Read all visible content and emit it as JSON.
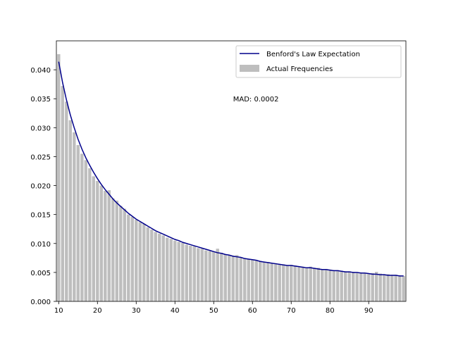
{
  "chart_data": {
    "type": "bar",
    "title": "",
    "xlabel": "",
    "ylabel": "",
    "xlim": [
      9.4,
      99.6
    ],
    "ylim": [
      0,
      0.045
    ],
    "xticks": [
      10,
      20,
      30,
      40,
      50,
      60,
      70,
      80,
      90
    ],
    "xtick_labels": [
      "10",
      "20",
      "30",
      "40",
      "50",
      "60",
      "70",
      "80",
      "90"
    ],
    "yticks": [
      0.0,
      0.005,
      0.01,
      0.015,
      0.02,
      0.025,
      0.03,
      0.035,
      0.04
    ],
    "ytick_labels": [
      "0.000",
      "0.005",
      "0.010",
      "0.015",
      "0.020",
      "0.025",
      "0.030",
      "0.035",
      "0.040"
    ],
    "grid": false,
    "legend_position": "top-right",
    "legend": {
      "line_label": "Benford's Law Expectation",
      "bar_label": "Actual Frequencies"
    },
    "annotation": {
      "text": "MAD: 0.0002",
      "x": 55,
      "y": 0.035
    },
    "colors": {
      "bar": "#bebebe",
      "line": "#00008b"
    },
    "x": [
      10,
      11,
      12,
      13,
      14,
      15,
      16,
      17,
      18,
      19,
      20,
      21,
      22,
      23,
      24,
      25,
      26,
      27,
      28,
      29,
      30,
      31,
      32,
      33,
      34,
      35,
      36,
      37,
      38,
      39,
      40,
      41,
      42,
      43,
      44,
      45,
      46,
      47,
      48,
      49,
      50,
      51,
      52,
      53,
      54,
      55,
      56,
      57,
      58,
      59,
      60,
      61,
      62,
      63,
      64,
      65,
      66,
      67,
      68,
      69,
      70,
      71,
      72,
      73,
      74,
      75,
      76,
      77,
      78,
      79,
      80,
      81,
      82,
      83,
      84,
      85,
      86,
      87,
      88,
      89,
      90,
      91,
      92,
      93,
      94,
      95,
      96,
      97,
      98,
      99
    ],
    "series": [
      {
        "name": "Actual Frequencies",
        "type": "bar",
        "values": [
          0.0427,
          0.0372,
          0.0345,
          0.0313,
          0.0292,
          0.027,
          0.0255,
          0.0244,
          0.023,
          0.0216,
          0.0208,
          0.02,
          0.0191,
          0.0192,
          0.0178,
          0.0174,
          0.0165,
          0.016,
          0.015,
          0.0146,
          0.0141,
          0.0137,
          0.0134,
          0.0128,
          0.0124,
          0.012,
          0.0117,
          0.0114,
          0.011,
          0.0108,
          0.0105,
          0.0103,
          0.0101,
          0.0098,
          0.0096,
          0.0095,
          0.0092,
          0.0091,
          0.0088,
          0.0087,
          0.0086,
          0.0091,
          0.0084,
          0.0081,
          0.008,
          0.0079,
          0.008,
          0.0076,
          0.0074,
          0.0073,
          0.0072,
          0.0071,
          0.007,
          0.0068,
          0.0068,
          0.0066,
          0.0066,
          0.0064,
          0.0064,
          0.0062,
          0.0063,
          0.0062,
          0.006,
          0.006,
          0.0058,
          0.006,
          0.0058,
          0.0058,
          0.0056,
          0.0056,
          0.0055,
          0.0054,
          0.0054,
          0.0053,
          0.0052,
          0.0052,
          0.0051,
          0.0049,
          0.005,
          0.0049,
          0.0048,
          0.0049,
          0.0051,
          0.0048,
          0.0047,
          0.0047,
          0.0046,
          0.0046,
          0.0045,
          0.0044
        ]
      },
      {
        "name": "Benford's Law Expectation",
        "type": "line",
        "values": [
          0.0414,
          0.0378,
          0.0348,
          0.0322,
          0.03,
          0.028,
          0.0263,
          0.0248,
          0.0235,
          0.0223,
          0.0212,
          0.0202,
          0.0193,
          0.0185,
          0.0177,
          0.017,
          0.0164,
          0.0158,
          0.0152,
          0.0147,
          0.0142,
          0.0138,
          0.0134,
          0.013,
          0.0126,
          0.0122,
          0.0119,
          0.0116,
          0.0113,
          0.011,
          0.0107,
          0.0105,
          0.0102,
          0.01,
          0.0098,
          0.0096,
          0.0094,
          0.0092,
          0.009,
          0.0088,
          0.0086,
          0.0084,
          0.0083,
          0.0081,
          0.008,
          0.0078,
          0.0077,
          0.0076,
          0.0074,
          0.0073,
          0.0072,
          0.0071,
          0.0069,
          0.0068,
          0.0067,
          0.0066,
          0.0065,
          0.0064,
          0.0063,
          0.0062,
          0.0062,
          0.0061,
          0.006,
          0.0059,
          0.0058,
          0.0058,
          0.0057,
          0.0056,
          0.0055,
          0.0055,
          0.0054,
          0.0053,
          0.0053,
          0.0052,
          0.0051,
          0.0051,
          0.005,
          0.005,
          0.0049,
          0.0049,
          0.0048,
          0.0047,
          0.0047,
          0.0046,
          0.0046,
          0.0045,
          0.0045,
          0.0045,
          0.0044,
          0.0044
        ]
      }
    ]
  }
}
